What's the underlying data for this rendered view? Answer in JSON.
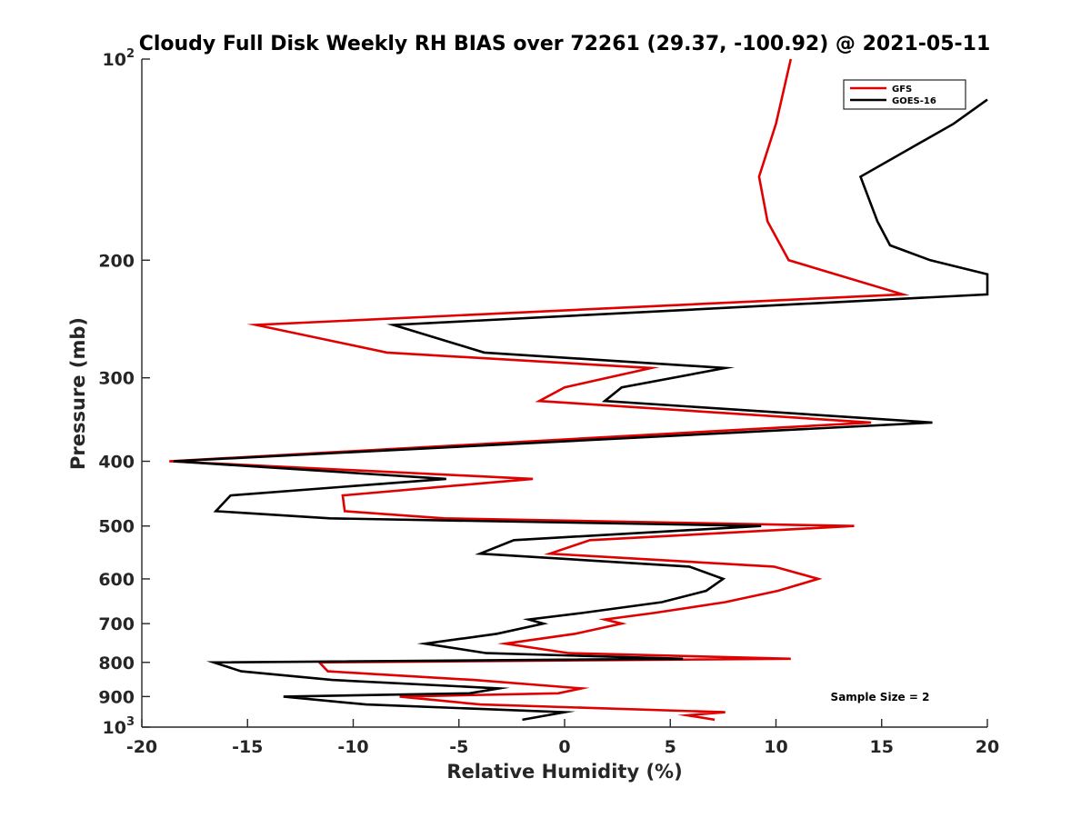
{
  "chart_data": {
    "type": "line",
    "title": "Cloudy Full Disk Weekly RH BIAS over 72261 (29.37, -100.92) @ 2021-05-11",
    "xlabel": "Relative Humidity (%)",
    "ylabel": "Pressure (mb)",
    "xlim": [
      -20,
      20
    ],
    "ylim": [
      100,
      1000
    ],
    "y_scale": "log",
    "y_reversed": true,
    "x_ticks": [
      "-20",
      "-15",
      "-10",
      "-5",
      "0",
      "5",
      "10",
      "15",
      "20"
    ],
    "y_ticks": [
      {
        "value": 100,
        "label": "10",
        "sup": "2"
      },
      {
        "value": 200,
        "label": "200",
        "sup": ""
      },
      {
        "value": 300,
        "label": "300",
        "sup": ""
      },
      {
        "value": 400,
        "label": "400",
        "sup": ""
      },
      {
        "value": 500,
        "label": "500",
        "sup": ""
      },
      {
        "value": 600,
        "label": "600",
        "sup": ""
      },
      {
        "value": 700,
        "label": "700",
        "sup": ""
      },
      {
        "value": 800,
        "label": "800",
        "sup": ""
      },
      {
        "value": 900,
        "label": "900",
        "sup": ""
      },
      {
        "value": 1000,
        "label": "10",
        "sup": "3"
      }
    ],
    "grid": false,
    "legend_position": "top-right",
    "annotation": "Sample Size = 2",
    "series": [
      {
        "name": "GFS",
        "color": "#e00000",
        "points": [
          {
            "rh": 10.7,
            "p": 100
          },
          {
            "rh": 10.0,
            "p": 125
          },
          {
            "rh": 9.2,
            "p": 150
          },
          {
            "rh": 9.6,
            "p": 175
          },
          {
            "rh": 10.6,
            "p": 200
          },
          {
            "rh": 16.0,
            "p": 225
          },
          {
            "rh": -14.6,
            "p": 250
          },
          {
            "rh": -8.4,
            "p": 275
          },
          {
            "rh": 4.1,
            "p": 290
          },
          {
            "rh": 0.0,
            "p": 310
          },
          {
            "rh": -1.2,
            "p": 325
          },
          {
            "rh": 14.5,
            "p": 350
          },
          {
            "rh": -18.7,
            "p": 400
          },
          {
            "rh": -1.5,
            "p": 425
          },
          {
            "rh": -10.5,
            "p": 450
          },
          {
            "rh": -10.4,
            "p": 475
          },
          {
            "rh": -5.7,
            "p": 487
          },
          {
            "rh": 13.7,
            "p": 500
          },
          {
            "rh": 1.2,
            "p": 525
          },
          {
            "rh": -0.7,
            "p": 550
          },
          {
            "rh": 9.9,
            "p": 575
          },
          {
            "rh": 12.0,
            "p": 600
          },
          {
            "rh": 10.1,
            "p": 625
          },
          {
            "rh": 7.6,
            "p": 650
          },
          {
            "rh": 4.2,
            "p": 675
          },
          {
            "rh": 1.9,
            "p": 690
          },
          {
            "rh": 2.7,
            "p": 700
          },
          {
            "rh": 0.5,
            "p": 725
          },
          {
            "rh": -2.8,
            "p": 750
          },
          {
            "rh": 0.2,
            "p": 775
          },
          {
            "rh": 10.7,
            "p": 790
          },
          {
            "rh": -11.6,
            "p": 800
          },
          {
            "rh": -11.2,
            "p": 825
          },
          {
            "rh": -4.3,
            "p": 850
          },
          {
            "rh": 0.8,
            "p": 875
          },
          {
            "rh": -0.3,
            "p": 890
          },
          {
            "rh": -7.8,
            "p": 900
          },
          {
            "rh": -4.0,
            "p": 925
          },
          {
            "rh": 7.6,
            "p": 950
          },
          {
            "rh": 5.8,
            "p": 960
          },
          {
            "rh": 7.1,
            "p": 975
          }
        ]
      },
      {
        "name": "GOES-16",
        "color": "#000000",
        "points": [
          {
            "rh": 20.0,
            "p": 115
          },
          {
            "rh": 18.4,
            "p": 125
          },
          {
            "rh": 14.0,
            "p": 150
          },
          {
            "rh": 14.8,
            "p": 175
          },
          {
            "rh": 15.4,
            "p": 190
          },
          {
            "rh": 17.3,
            "p": 200
          },
          {
            "rh": 20.0,
            "p": 210
          },
          {
            "rh": 20.0,
            "p": 225
          },
          {
            "rh": -8.1,
            "p": 250
          },
          {
            "rh": -3.8,
            "p": 275
          },
          {
            "rh": 7.6,
            "p": 290
          },
          {
            "rh": 2.7,
            "p": 310
          },
          {
            "rh": 1.9,
            "p": 325
          },
          {
            "rh": 17.4,
            "p": 350
          },
          {
            "rh": -18.5,
            "p": 400
          },
          {
            "rh": -5.6,
            "p": 425
          },
          {
            "rh": -15.8,
            "p": 450
          },
          {
            "rh": -16.5,
            "p": 475
          },
          {
            "rh": -11.1,
            "p": 487
          },
          {
            "rh": 9.3,
            "p": 500
          },
          {
            "rh": -2.4,
            "p": 525
          },
          {
            "rh": -4.0,
            "p": 550
          },
          {
            "rh": 5.9,
            "p": 575
          },
          {
            "rh": 7.5,
            "p": 600
          },
          {
            "rh": 6.7,
            "p": 625
          },
          {
            "rh": 4.6,
            "p": 650
          },
          {
            "rh": 0.8,
            "p": 675
          },
          {
            "rh": -1.7,
            "p": 690
          },
          {
            "rh": -1.0,
            "p": 700
          },
          {
            "rh": -3.2,
            "p": 725
          },
          {
            "rh": -6.6,
            "p": 750
          },
          {
            "rh": -3.7,
            "p": 775
          },
          {
            "rh": 5.6,
            "p": 790
          },
          {
            "rh": -16.6,
            "p": 800
          },
          {
            "rh": -15.3,
            "p": 825
          },
          {
            "rh": -11.0,
            "p": 850
          },
          {
            "rh": -3.1,
            "p": 875
          },
          {
            "rh": -4.5,
            "p": 890
          },
          {
            "rh": -13.3,
            "p": 900
          },
          {
            "rh": -9.4,
            "p": 925
          },
          {
            "rh": 0.0,
            "p": 950
          },
          {
            "rh": -2.0,
            "p": 975
          }
        ]
      }
    ]
  }
}
